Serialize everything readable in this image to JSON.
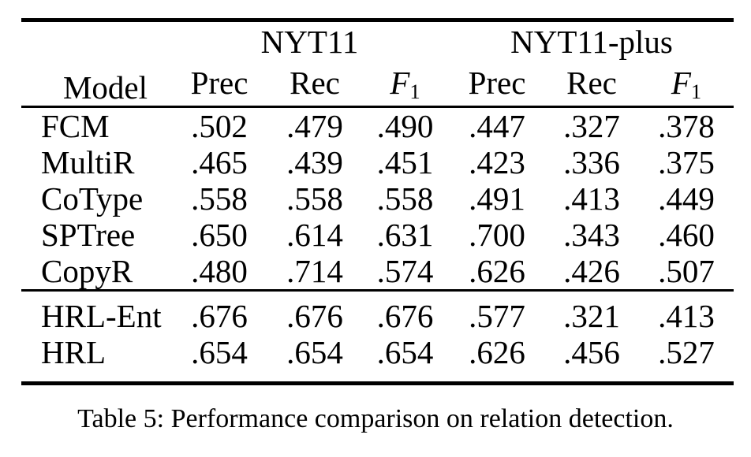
{
  "colors": {
    "background": "#ffffff",
    "text": "#000000",
    "rule": "#000000"
  },
  "table": {
    "model_header": "Model",
    "groups": [
      {
        "label": "NYT11",
        "prec": "Prec",
        "rec": "Rec",
        "f1": {
          "base": "F",
          "sub": "1"
        }
      },
      {
        "label": "NYT11-plus",
        "prec": "Prec",
        "rec": "Rec",
        "f1": {
          "base": "F",
          "sub": "1"
        }
      }
    ],
    "sections": [
      {
        "rows": [
          {
            "model": "FCM",
            "values": [
              ".502",
              ".479",
              ".490",
              ".447",
              ".327",
              ".378"
            ],
            "bold": []
          },
          {
            "model": "MultiR",
            "values": [
              ".465",
              ".439",
              ".451",
              ".423",
              ".336",
              ".375"
            ],
            "bold": []
          },
          {
            "model": "CoType",
            "values": [
              ".558",
              ".558",
              ".558",
              ".491",
              ".413",
              ".449"
            ],
            "bold": []
          },
          {
            "model": "SPTree",
            "values": [
              ".650",
              ".614",
              ".631",
              ".700",
              ".343",
              ".460"
            ],
            "bold": [
              3
            ]
          },
          {
            "model": "CopyR",
            "values": [
              ".480",
              ".714",
              ".574",
              ".626",
              ".426",
              ".507"
            ],
            "bold": [
              1
            ]
          }
        ]
      },
      {
        "rows": [
          {
            "model": "HRL-Ent",
            "values": [
              ".676",
              ".676",
              ".676",
              ".577",
              ".321",
              ".413"
            ],
            "bold": [
              0,
              2
            ]
          },
          {
            "model": "HRL",
            "values": [
              ".654",
              ".654",
              ".654",
              ".626",
              ".456",
              ".527"
            ],
            "bold": [
              4,
              5
            ]
          }
        ]
      }
    ]
  },
  "caption": "Table 5: Performance comparison on relation detection."
}
